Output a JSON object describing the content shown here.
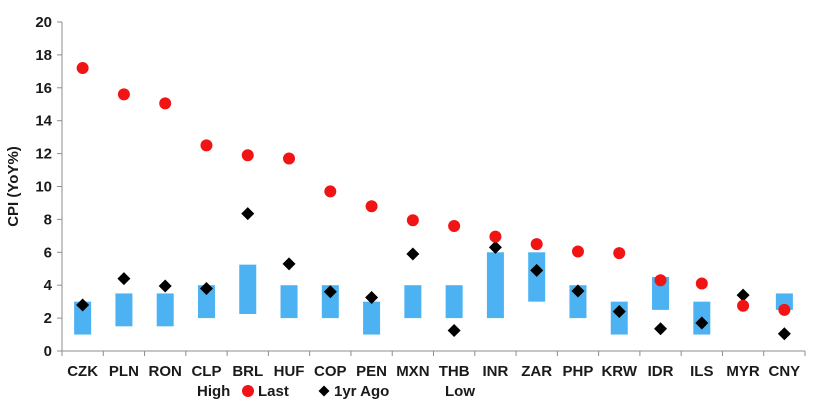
{
  "chart_data": {
    "type": "bar",
    "ylabel": "CPI (YoY%)",
    "xlabel": "",
    "ylim": [
      0,
      20
    ],
    "y_ticks": [
      0,
      2,
      4,
      6,
      8,
      10,
      12,
      14,
      16,
      18,
      20
    ],
    "grid": false,
    "legend_position": "bottom",
    "categories": [
      "CZK",
      "PLN",
      "RON",
      "CLP",
      "BRL",
      "HUF",
      "COP",
      "PEN",
      "MXN",
      "THB",
      "INR",
      "ZAR",
      "PHP",
      "KRW",
      "IDR",
      "ILS",
      "MYR",
      "CNY"
    ],
    "series": [
      {
        "name": "High",
        "kind": "range-top",
        "values": [
          3,
          3.5,
          3.5,
          4,
          5.25,
          4,
          4,
          3,
          4,
          4,
          6,
          6,
          4,
          3,
          4.5,
          3,
          null,
          3.5
        ]
      },
      {
        "name": "Low",
        "kind": "range-bottom",
        "values": [
          1,
          1.5,
          1.5,
          2,
          2.25,
          2,
          2,
          1,
          2,
          2,
          2,
          3,
          2,
          1,
          2.5,
          1,
          null,
          2.5
        ]
      },
      {
        "name": "Last",
        "kind": "point",
        "values": [
          17.2,
          15.6,
          15.05,
          12.5,
          11.9,
          11.7,
          9.7,
          8.8,
          7.95,
          7.6,
          6.95,
          6.5,
          6.05,
          5.95,
          4.3,
          4.1,
          2.75,
          2.5
        ]
      },
      {
        "name": "1yr Ago",
        "kind": "point",
        "values": [
          2.8,
          4.4,
          3.95,
          3.8,
          8.35,
          5.3,
          3.6,
          3.25,
          5.9,
          1.25,
          6.3,
          4.9,
          3.65,
          2.4,
          1.35,
          1.7,
          3.4,
          1.05
        ]
      }
    ],
    "colors": {
      "range_bar": "#4db2f2",
      "last_marker": "#f01414",
      "year_ago_marker": "#000000",
      "axis": "#8c8c8c"
    }
  },
  "legend": [
    {
      "label": "High",
      "icon": "none"
    },
    {
      "label": "Last",
      "icon": "red-circle"
    },
    {
      "label": "1yr Ago",
      "icon": "black-diamond"
    },
    {
      "label": "Low",
      "icon": "none"
    }
  ]
}
